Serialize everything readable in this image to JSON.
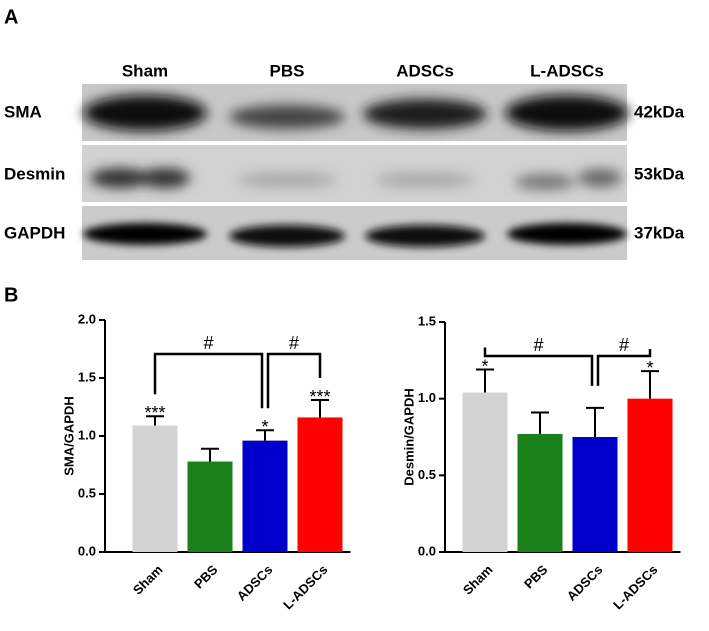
{
  "panel_labels": [
    "A",
    "B"
  ],
  "blot": {
    "lanes": [
      "Sham",
      "PBS",
      "ADSCs",
      "L-ADSCs"
    ],
    "rows": [
      {
        "label": "SMA",
        "size": "42kDa"
      },
      {
        "label": "Desmin",
        "size": "53kDa"
      },
      {
        "label": "GAPDH",
        "size": "37kDa"
      }
    ]
  },
  "chart_data": [
    {
      "type": "bar",
      "ylabel": "SMA/GAPDH",
      "categories": [
        "Sham",
        "PBS",
        "ADSCs",
        "L-ADSCs"
      ],
      "colors": [
        "#d3d3d3",
        "#1a801a",
        "#0000cc",
        "#ff0000"
      ],
      "values": [
        1.09,
        0.78,
        0.96,
        1.16
      ],
      "errors": [
        0.08,
        0.11,
        0.09,
        0.15
      ],
      "annotations": [
        "***",
        null,
        "*",
        "***"
      ],
      "brackets": [
        {
          "label": "#",
          "pair": [
            "Sham",
            "ADSCs"
          ]
        },
        {
          "label": "#",
          "pair": [
            "ADSCs",
            "L-ADSCs"
          ]
        }
      ],
      "ylim": [
        0,
        2
      ],
      "yticks": [
        {
          "value": 0,
          "label": "0.0"
        },
        0.5,
        {
          "value": 1,
          "label": "1.0"
        },
        1.5,
        {
          "value": 2,
          "label": "2.0"
        }
      ]
    },
    {
      "type": "bar",
      "ylabel": "Desmin/GAPDH",
      "categories": [
        "Sham",
        "PBS",
        "ADSCs",
        "L-ADSCs"
      ],
      "colors": [
        "#d3d3d3",
        "#1a801a",
        "#0000cc",
        "#ff0000"
      ],
      "values": [
        1.04,
        0.77,
        0.75,
        1.0
      ],
      "errors": [
        0.15,
        0.14,
        0.19,
        0.18
      ],
      "annotations": [
        "*",
        null,
        null,
        "*"
      ],
      "brackets": [
        {
          "label": "#",
          "pair": [
            "Sham",
            "ADSCs"
          ]
        },
        {
          "label": "#",
          "pair": [
            "ADSCs",
            "L-ADSCs"
          ]
        }
      ],
      "ylim": [
        0,
        1.5
      ],
      "yticks": [
        {
          "value": 0,
          "label": "0.0"
        },
        0.5,
        {
          "value": 1,
          "label": "1.0"
        },
        1.5
      ]
    }
  ]
}
